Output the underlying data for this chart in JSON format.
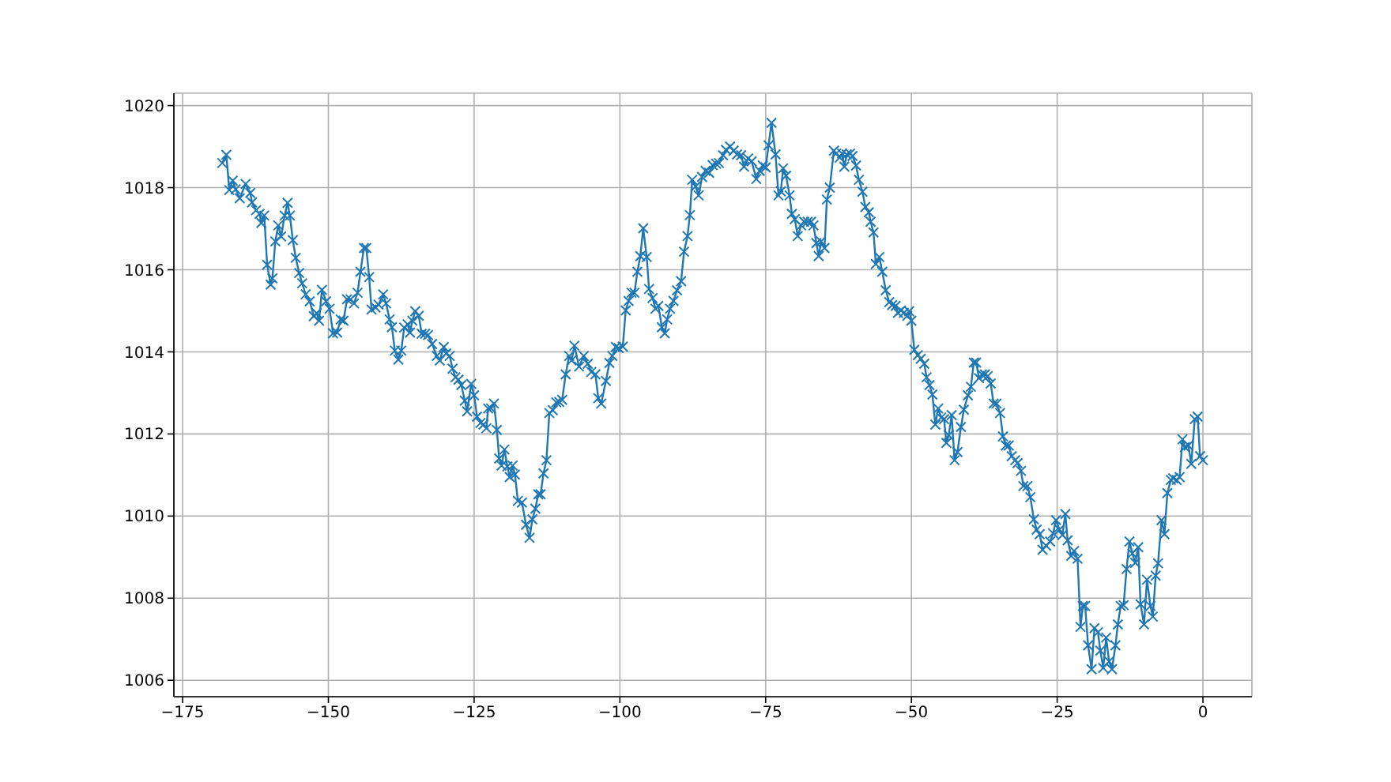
{
  "chart_data": {
    "type": "line",
    "color": "#1f77b4",
    "marker": "cross",
    "grid": true,
    "xlim": [
      -176.5,
      8.4
    ],
    "ylim": [
      1005.6,
      1020.3
    ],
    "xticks": [
      -175,
      -150,
      -125,
      -100,
      -75,
      -50,
      -25,
      0
    ],
    "yticks": [
      1006,
      1008,
      1010,
      1012,
      1014,
      1016,
      1018,
      1020
    ],
    "x": [
      -168.2,
      -167.5,
      -167.0,
      -166.4,
      -165.9,
      -165.2,
      -164.2,
      -163.4,
      -163.1,
      -162.4,
      -161.8,
      -161.5,
      -161.0,
      -160.5,
      -159.9,
      -159.6,
      -159.1,
      -158.6,
      -158.1,
      -157.5,
      -157.0,
      -156.6,
      -156.1,
      -155.6,
      -155.0,
      -154.5,
      -153.9,
      -153.2,
      -152.5,
      -152.0,
      -151.6,
      -151.1,
      -150.4,
      -149.8,
      -149.2,
      -148.5,
      -147.9,
      -147.4,
      -146.8,
      -146.2,
      -145.6,
      -145.0,
      -144.5,
      -143.9,
      -143.5,
      -143.0,
      -142.6,
      -141.9,
      -141.4,
      -140.6,
      -140.1,
      -139.5,
      -139.1,
      -138.6,
      -138.0,
      -137.5,
      -137.0,
      -136.4,
      -136.0,
      -135.6,
      -135.1,
      -134.5,
      -134.0,
      -133.4,
      -132.9,
      -132.2,
      -131.4,
      -130.9,
      -130.2,
      -129.8,
      -129.2,
      -128.7,
      -128.2,
      -127.7,
      -127.2,
      -126.6,
      -126.2,
      -125.5,
      -125.0,
      -124.5,
      -123.9,
      -123.4,
      -122.9,
      -122.6,
      -122.1,
      -121.6,
      -121.1,
      -120.7,
      -120.3,
      -119.8,
      -119.3,
      -118.9,
      -118.4,
      -118.0,
      -117.5,
      -116.8,
      -116.1,
      -115.5,
      -115.0,
      -114.5,
      -114.0,
      -113.6,
      -113.1,
      -112.6,
      -112.1,
      -111.5,
      -110.9,
      -110.4,
      -109.9,
      -109.3,
      -108.7,
      -108.3,
      -107.8,
      -107.0,
      -106.2,
      -105.5,
      -104.9,
      -104.2,
      -103.7,
      -103.2,
      -102.4,
      -101.8,
      -101.3,
      -100.7,
      -100.2,
      -99.5,
      -99.0,
      -98.5,
      -98.0,
      -97.5,
      -97.0,
      -96.5,
      -96.0,
      -95.4,
      -95.0,
      -94.4,
      -93.9,
      -93.4,
      -92.8,
      -92.3,
      -91.9,
      -91.4,
      -90.8,
      -90.2,
      -89.5,
      -89.0,
      -88.4,
      -88.0,
      -87.6,
      -87.0,
      -86.5,
      -85.9,
      -85.3,
      -84.7,
      -84.1,
      -83.5,
      -83.0,
      -82.3,
      -81.8,
      -81.1,
      -80.5,
      -79.9,
      -79.2,
      -78.7,
      -78.0,
      -77.4,
      -76.6,
      -76.0,
      -75.5,
      -75.0,
      -74.5,
      -74.0,
      -73.3,
      -72.8,
      -72.4,
      -72.0,
      -71.5,
      -70.9,
      -70.5,
      -70.0,
      -69.5,
      -68.9,
      -68.4,
      -67.8,
      -67.2,
      -66.8,
      -66.3,
      -65.9,
      -65.5,
      -64.9,
      -64.5,
      -64.0,
      -63.3,
      -62.9,
      -62.3,
      -61.9,
      -61.5,
      -61.1,
      -60.5,
      -60.1,
      -59.5,
      -59.0,
      -58.4,
      -57.9,
      -57.3,
      -57.0,
      -56.5,
      -56.1,
      -55.5,
      -55.0,
      -54.4,
      -53.8,
      -53.3,
      -52.7,
      -52.3,
      -51.8,
      -51.3,
      -50.7,
      -50.4,
      -50.0,
      -49.5,
      -48.9,
      -48.4,
      -47.8,
      -47.4,
      -46.9,
      -46.4,
      -45.9,
      -45.4,
      -44.9,
      -44.4,
      -44.0,
      -43.6,
      -43.1,
      -42.6,
      -42.1,
      -41.5,
      -41.0,
      -40.3,
      -39.8,
      -39.3,
      -38.9,
      -38.4,
      -37.9,
      -37.4,
      -36.9,
      -36.4,
      -35.9,
      -35.4,
      -34.8,
      -34.3,
      -33.8,
      -33.3,
      -32.8,
      -32.2,
      -31.8,
      -31.2,
      -30.8,
      -30.1,
      -29.6,
      -29.0,
      -28.5,
      -28.0,
      -27.5,
      -26.9,
      -26.2,
      -25.7,
      -25.2,
      -24.6,
      -24.1,
      -23.6,
      -23.2,
      -22.6,
      -22.1,
      -21.5,
      -21.0,
      -20.6,
      -20.2,
      -19.7,
      -19.1,
      -18.6,
      -18.0,
      -17.6,
      -17.1,
      -16.6,
      -16.1,
      -15.6,
      -15.0,
      -14.6,
      -14.1,
      -13.6,
      -13.1,
      -12.6,
      -12.1,
      -11.6,
      -11.1,
      -10.7,
      -10.1,
      -9.6,
      -9.0,
      -8.6,
      -8.1,
      -7.7,
      -7.1,
      -6.6,
      -6.1,
      -5.5,
      -5.1,
      -4.5,
      -4.0,
      -3.5,
      -3.1,
      -2.5,
      -2.0,
      -1.4,
      -0.9,
      -0.5,
      0
    ],
    "values": [
      1018.6,
      1018.8,
      1017.94,
      1018.17,
      1017.96,
      1017.74,
      1018.09,
      1017.87,
      1017.64,
      1017.45,
      1017.36,
      1017.14,
      1017.32,
      1016.12,
      1015.64,
      1015.79,
      1016.69,
      1017.08,
      1016.81,
      1017.32,
      1017.63,
      1017.32,
      1016.72,
      1016.29,
      1015.92,
      1015.67,
      1015.4,
      1015.23,
      1014.87,
      1014.94,
      1014.76,
      1015.51,
      1015.23,
      1015.05,
      1014.45,
      1014.47,
      1014.79,
      1014.76,
      1015.28,
      1015.28,
      1015.18,
      1015.44,
      1015.95,
      1016.53,
      1016.53,
      1015.82,
      1015.03,
      1015.08,
      1015.15,
      1015.4,
      1015.18,
      1014.79,
      1014.6,
      1014.03,
      1013.81,
      1014.03,
      1014.59,
      1014.67,
      1014.47,
      1014.76,
      1014.99,
      1014.88,
      1014.44,
      1014.44,
      1014.41,
      1014.19,
      1013.9,
      1013.79,
      1014.12,
      1013.96,
      1013.9,
      1013.59,
      1013.38,
      1013.32,
      1013.19,
      1012.81,
      1012.55,
      1013.22,
      1012.94,
      1012.42,
      1012.27,
      1012.23,
      1012.14,
      1012.62,
      1012.62,
      1012.74,
      1012.1,
      1011.4,
      1011.23,
      1011.62,
      1011.21,
      1010.95,
      1011.23,
      1011.01,
      1010.37,
      1010.33,
      1009.79,
      1009.47,
      1009.92,
      1010.18,
      1010.53,
      1010.53,
      1011.04,
      1011.36,
      1012.51,
      1012.58,
      1012.77,
      1012.78,
      1012.83,
      1013.45,
      1013.9,
      1013.79,
      1014.15,
      1013.64,
      1013.9,
      1013.71,
      1013.51,
      1013.45,
      1012.87,
      1012.74,
      1013.29,
      1013.73,
      1013.9,
      1014.12,
      1014.09,
      1014.13,
      1015.01,
      1015.24,
      1015.44,
      1015.44,
      1015.95,
      1016.33,
      1017.01,
      1016.31,
      1015.53,
      1015.31,
      1015.05,
      1015.12,
      1014.6,
      1014.45,
      1014.79,
      1015.05,
      1015.24,
      1015.5,
      1015.72,
      1016.44,
      1016.82,
      1017.33,
      1018.19,
      1018.03,
      1017.81,
      1018.26,
      1018.41,
      1018.36,
      1018.55,
      1018.58,
      1018.6,
      1018.79,
      1018.92,
      1019.0,
      1018.9,
      1018.81,
      1018.79,
      1018.51,
      1018.71,
      1018.64,
      1018.21,
      1018.41,
      1018.54,
      1018.49,
      1019.03,
      1019.58,
      1018.81,
      1017.81,
      1017.91,
      1018.47,
      1018.29,
      1017.81,
      1017.36,
      1017.23,
      1016.82,
      1017.08,
      1017.17,
      1017.17,
      1017.17,
      1017.08,
      1016.65,
      1016.33,
      1016.69,
      1016.53,
      1017.71,
      1018.0,
      1018.9,
      1018.83,
      1018.73,
      1018.83,
      1018.51,
      1018.81,
      1018.83,
      1018.77,
      1018.54,
      1018.19,
      1017.9,
      1017.53,
      1017.4,
      1017.17,
      1016.91,
      1016.14,
      1016.31,
      1015.95,
      1015.5,
      1015.21,
      1015.14,
      1015.12,
      1014.95,
      1015.01,
      1014.95,
      1014.88,
      1014.99,
      1014.76,
      1014.05,
      1013.92,
      1013.83,
      1013.71,
      1013.38,
      1013.19,
      1012.96,
      1012.23,
      1012.62,
      1012.4,
      1012.36,
      1011.78,
      1011.97,
      1012.46,
      1011.36,
      1011.56,
      1012.17,
      1012.59,
      1012.94,
      1013.15,
      1013.74,
      1013.74,
      1013.36,
      1013.45,
      1013.45,
      1013.41,
      1013.23,
      1012.74,
      1012.74,
      1012.51,
      1011.94,
      1011.72,
      1011.72,
      1011.46,
      1011.36,
      1011.29,
      1011.1,
      1010.73,
      1010.73,
      1010.46,
      1009.92,
      1009.67,
      1009.56,
      1009.18,
      1009.28,
      1009.38,
      1009.58,
      1009.9,
      1009.67,
      1009.54,
      1010.05,
      1009.41,
      1009.03,
      1009.15,
      1008.96,
      1007.3,
      1007.81,
      1007.81,
      1006.85,
      1006.27,
      1007.27,
      1007.17,
      1006.72,
      1006.3,
      1007.04,
      1006.46,
      1006.27,
      1006.85,
      1007.36,
      1007.81,
      1007.83,
      1008.71,
      1009.38,
      1009.09,
      1008.86,
      1009.24,
      1007.85,
      1007.36,
      1008.45,
      1007.81,
      1007.55,
      1008.55,
      1008.85,
      1009.9,
      1009.56,
      1010.56,
      1010.88,
      1010.92,
      1010.88,
      1010.95,
      1011.87,
      1011.68,
      1011.72,
      1011.27,
      1012.36,
      1012.42,
      1011.46,
      1011.36
    ]
  }
}
